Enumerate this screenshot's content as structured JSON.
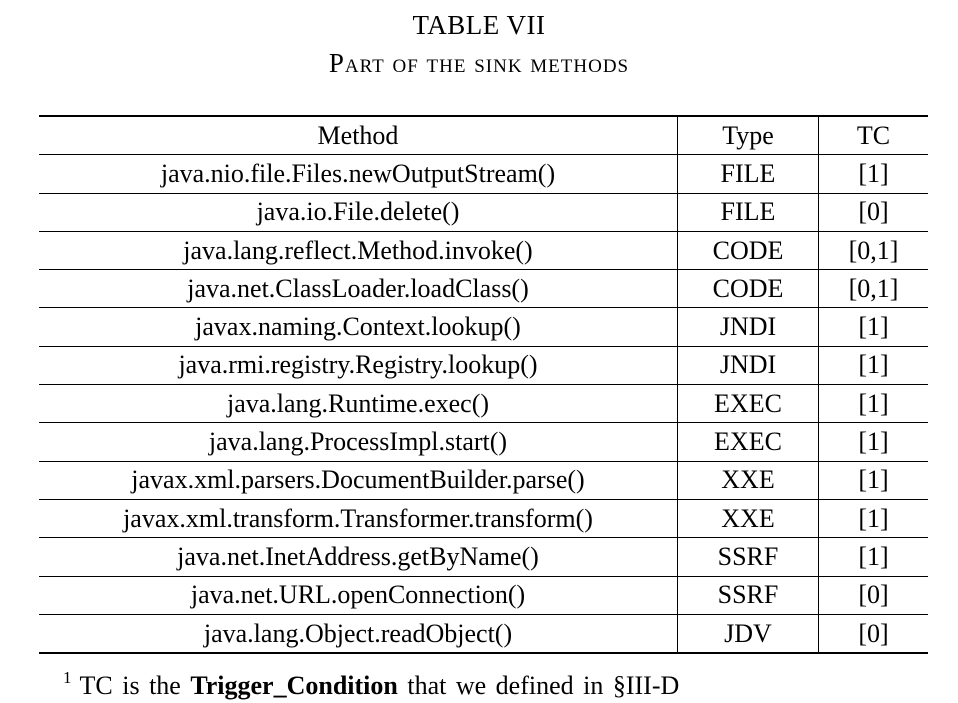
{
  "caption": {
    "number": "TABLE VII",
    "title": "Part of the sink methods"
  },
  "table": {
    "headers": [
      "Method",
      "Type",
      "TC"
    ],
    "rows": [
      [
        "java.nio.file.Files.newOutputStream()",
        "FILE",
        "[1]"
      ],
      [
        "java.io.File.delete()",
        "FILE",
        "[0]"
      ],
      [
        "java.lang.reflect.Method.invoke()",
        "CODE",
        "[0,1]"
      ],
      [
        "java.net.ClassLoader.loadClass()",
        "CODE",
        "[0,1]"
      ],
      [
        "javax.naming.Context.lookup()",
        "JNDI",
        "[1]"
      ],
      [
        "java.rmi.registry.Registry.lookup()",
        "JNDI",
        "[1]"
      ],
      [
        "java.lang.Runtime.exec()",
        "EXEC",
        "[1]"
      ],
      [
        "java.lang.ProcessImpl.start()",
        "EXEC",
        "[1]"
      ],
      [
        "javax.xml.parsers.DocumentBuilder.parse()",
        "XXE",
        "[1]"
      ],
      [
        "javax.xml.transform.Transformer.transform()",
        "XXE",
        "[1]"
      ],
      [
        "java.net.InetAddress.getByName()",
        "SSRF",
        "[1]"
      ],
      [
        "java.net.URL.openConnection()",
        "SSRF",
        "[0]"
      ],
      [
        "java.lang.Object.readObject()",
        "JDV",
        "[0]"
      ]
    ]
  },
  "footnote": {
    "marker": "1",
    "text_before": "TC is the",
    "term": "Trigger_Condition",
    "text_after": "that we defined in §III-D"
  }
}
